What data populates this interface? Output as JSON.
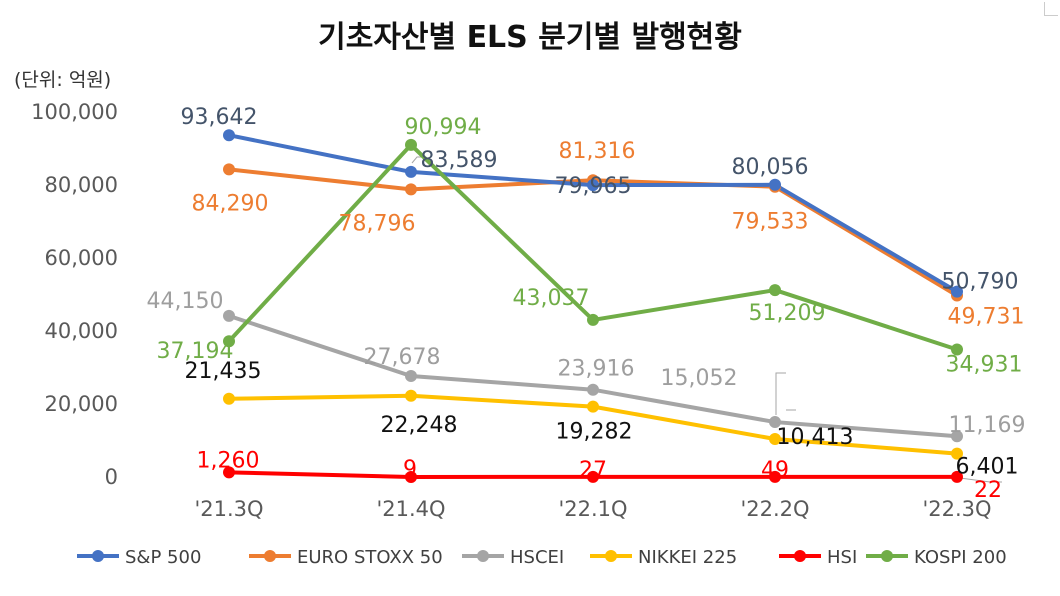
{
  "chart_data": {
    "type": "line",
    "title": "기초자산별 ELS 분기별 발행현황",
    "unit_label": "(단위: 억원)",
    "categories": [
      "'21.3Q",
      "'21.4Q",
      "'22.1Q",
      "'22.2Q",
      "'22.3Q"
    ],
    "y_tick_labels": [
      "100,000",
      "80,000",
      "60,000",
      "40,000",
      "20,000",
      "0"
    ],
    "ylim": [
      0,
      100000
    ],
    "grid": false,
    "legend_position": "bottom",
    "series": [
      {
        "name": "S&P 500",
        "color": "#4472C4",
        "label_color": "#44546A",
        "values": [
          93642,
          83589,
          79965,
          80056,
          50790
        ],
        "labels": [
          "93,642",
          "83,589",
          "79,965",
          "80,056",
          "50,790"
        ]
      },
      {
        "name": "EURO STOXX 50",
        "color": "#ED7D31",
        "label_color": "#ED7D31",
        "values": [
          84290,
          78796,
          81316,
          79533,
          49731
        ],
        "labels": [
          "84,290",
          "78,796",
          "81,316",
          "79,533",
          "49,731"
        ]
      },
      {
        "name": "HSCEI",
        "color": "#A5A5A5",
        "label_color": "#9E9E9E",
        "values": [
          44150,
          27678,
          23916,
          15052,
          11169
        ],
        "labels": [
          "44,150",
          "27,678",
          "23,916",
          "15,052",
          "11,169"
        ]
      },
      {
        "name": "NIKKEI 225",
        "color": "#FFC000",
        "label_color": "#111111",
        "values": [
          21435,
          22248,
          19282,
          10413,
          6401
        ],
        "labels": [
          "21,435",
          "22,248",
          "19,282",
          "10,413",
          "6,401"
        ]
      },
      {
        "name": "HSI",
        "color": "#FF0000",
        "label_color": "#FF0000",
        "values": [
          1260,
          9,
          27,
          49,
          22
        ],
        "labels": [
          "1,260",
          "9",
          "27",
          "49",
          "22"
        ]
      },
      {
        "name": "KOSPI 200",
        "color": "#70AD47",
        "label_color": "#70AD47",
        "values": [
          37194,
          90994,
          43037,
          51209,
          34931
        ],
        "labels": [
          "37,194",
          "90,994",
          "43,037",
          "51,209",
          "34,931"
        ]
      }
    ]
  }
}
